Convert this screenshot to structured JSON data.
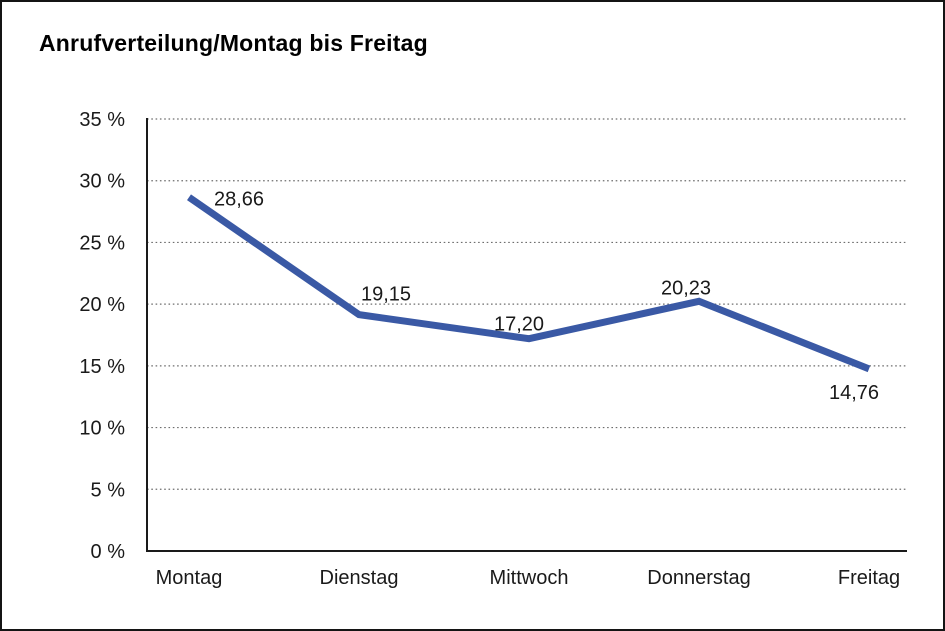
{
  "window": {
    "background_color": "#ffffff",
    "border_color": "#141414"
  },
  "chart_data": {
    "type": "line",
    "title": "Anrufverteilung/Montag bis Freitag",
    "categories": [
      "Montag",
      "Dienstag",
      "Mittwoch",
      "Donnerstag",
      "Freitag"
    ],
    "series": [
      {
        "name": "Anrufverteilung",
        "values": [
          28.66,
          19.15,
          17.2,
          20.23,
          14.76
        ]
      }
    ],
    "data_labels": [
      "28,66",
      "19,15",
      "17,20",
      "20,23",
      "14,76"
    ],
    "y_ticks": [
      {
        "value": 35,
        "label": "35 %"
      },
      {
        "value": 30,
        "label": "30 %"
      },
      {
        "value": 25,
        "label": "25 %"
      },
      {
        "value": 20,
        "label": "20 %"
      },
      {
        "value": 15,
        "label": "15 %"
      },
      {
        "value": 10,
        "label": "10 %"
      },
      {
        "value": 5,
        "label": "5 %"
      },
      {
        "value": 0,
        "label": "0 %"
      }
    ],
    "ylim": [
      0,
      35
    ],
    "xlabel": "",
    "ylabel": "",
    "grid": "horizontal-dotted",
    "legend": "none",
    "line_color": "#3a59a5",
    "text_color": "#1a1a1a",
    "grid_color": "#6e6e6e",
    "axis_color": "#1a1a1a"
  }
}
